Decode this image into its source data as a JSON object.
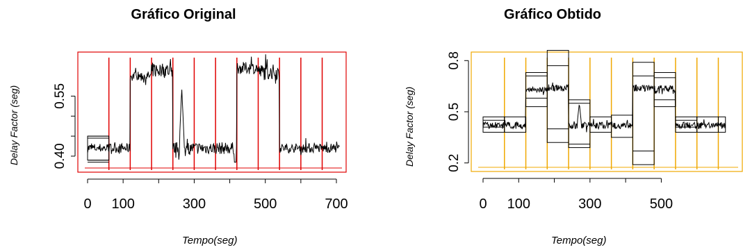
{
  "chart_data": [
    {
      "type": "line",
      "title": "Gráfico Original",
      "xlabel": "Tempo(seg)",
      "ylabel": "Delay Factor (seg)",
      "xlim": [
        0,
        720
      ],
      "ylim": [
        0.36,
        0.66
      ],
      "x_ticks": [
        "0",
        "100",
        "300",
        "500",
        "700"
      ],
      "x_tick_values": [
        0,
        100,
        300,
        500,
        700
      ],
      "y_ticks": [
        "0.40",
        "0.55"
      ],
      "y_tick_values": [
        0.4,
        0.55
      ],
      "frame_color": "#e00000",
      "segments": [
        {
          "x": [
            0,
            60
          ],
          "level": 0.42,
          "noise": 0.012
        },
        {
          "x": [
            60,
            120
          ],
          "level": 0.42,
          "noise": 0.012
        },
        {
          "x": [
            120,
            180
          ],
          "level": 0.6,
          "noise": 0.012
        },
        {
          "x": [
            180,
            240
          ],
          "level": 0.615,
          "noise": 0.02
        },
        {
          "x": [
            240,
            300
          ],
          "level": 0.42,
          "noise": 0.015
        },
        {
          "x": [
            300,
            360
          ],
          "level": 0.42,
          "noise": 0.015
        },
        {
          "x": [
            360,
            420
          ],
          "level": 0.42,
          "noise": 0.015
        },
        {
          "x": [
            420,
            480
          ],
          "level": 0.62,
          "noise": 0.015
        },
        {
          "x": [
            480,
            540
          ],
          "level": 0.61,
          "noise": 0.02
        },
        {
          "x": [
            540,
            600
          ],
          "level": 0.42,
          "noise": 0.012
        },
        {
          "x": [
            600,
            660
          ],
          "level": 0.42,
          "noise": 0.012
        },
        {
          "x": [
            660,
            710
          ],
          "level": 0.42,
          "noise": 0.012
        }
      ],
      "spike": {
        "x": 265,
        "peak": 0.57
      },
      "dip": {
        "x": 415,
        "low": 0.385
      },
      "verticals": [
        60,
        120,
        180,
        240,
        300,
        360,
        420,
        480,
        540,
        600,
        660
      ],
      "boxes": [
        {
          "x": [
            0,
            60
          ],
          "y": [
            0.39,
            0.45
          ]
        }
      ],
      "box_lines": [
        0.385,
        0.39,
        0.445,
        0.45
      ]
    },
    {
      "type": "line",
      "title": "Gráfico Obtido",
      "xlabel": "Tempo(seg)",
      "ylabel": "Delay Factor (seg)",
      "xlim": [
        0,
        680
      ],
      "ylim": [
        0.15,
        0.85
      ],
      "x_ticks": [
        "0",
        "100",
        "300",
        "500"
      ],
      "x_tick_values": [
        0,
        100,
        300,
        500
      ],
      "y_ticks": [
        "0.2",
        "0.5",
        "0.8"
      ],
      "y_tick_values": [
        0.2,
        0.5,
        0.8
      ],
      "frame_color": "#f0a800",
      "segments": [
        {
          "x": [
            0,
            60
          ],
          "level": 0.42,
          "noise": 0.02
        },
        {
          "x": [
            60,
            120
          ],
          "level": 0.42,
          "noise": 0.02
        },
        {
          "x": [
            120,
            180
          ],
          "level": 0.63,
          "noise": 0.015
        },
        {
          "x": [
            180,
            240
          ],
          "level": 0.64,
          "noise": 0.02
        },
        {
          "x": [
            240,
            300
          ],
          "level": 0.42,
          "noise": 0.02
        },
        {
          "x": [
            300,
            360
          ],
          "level": 0.42,
          "noise": 0.02
        },
        {
          "x": [
            360,
            420
          ],
          "level": 0.42,
          "noise": 0.02
        },
        {
          "x": [
            420,
            480
          ],
          "level": 0.64,
          "noise": 0.02
        },
        {
          "x": [
            480,
            540
          ],
          "level": 0.63,
          "noise": 0.025
        },
        {
          "x": [
            540,
            600
          ],
          "level": 0.42,
          "noise": 0.02
        },
        {
          "x": [
            600,
            660
          ],
          "level": 0.42,
          "noise": 0.02
        },
        {
          "x": [
            660,
            680
          ],
          "level": 0.42,
          "noise": 0.02
        }
      ],
      "spike": {
        "x": 270,
        "peak": 0.55
      },
      "verticals": [
        60,
        120,
        180,
        240,
        300,
        360,
        420,
        480,
        540,
        600,
        660
      ],
      "boxes": [
        {
          "x": [
            0,
            60
          ],
          "y": [
            0.38,
            0.47
          ]
        },
        {
          "x": [
            60,
            120
          ],
          "y": [
            0.38,
            0.47
          ]
        },
        {
          "x": [
            120,
            180
          ],
          "y": [
            0.53,
            0.73
          ]
        },
        {
          "x": [
            180,
            240
          ],
          "y": [
            0.32,
            0.86
          ]
        },
        {
          "x": [
            240,
            300
          ],
          "y": [
            0.29,
            0.57
          ]
        },
        {
          "x": [
            300,
            360
          ],
          "y": [
            0.38,
            0.47
          ]
        },
        {
          "x": [
            360,
            420
          ],
          "y": [
            0.35,
            0.48
          ]
        },
        {
          "x": [
            420,
            480
          ],
          "y": [
            0.19,
            0.79
          ]
        },
        {
          "x": [
            480,
            540
          ],
          "y": [
            0.53,
            0.73
          ]
        },
        {
          "x": [
            540,
            600
          ],
          "y": [
            0.38,
            0.47
          ]
        },
        {
          "x": [
            600,
            660
          ],
          "y": [
            0.38,
            0.47
          ]
        },
        {
          "x": [
            660,
            680
          ],
          "y": [
            0.38,
            0.47
          ]
        }
      ],
      "inner_lines": [
        {
          "x": [
            120,
            180
          ],
          "y": [
            0.58,
            0.71
          ]
        },
        {
          "x": [
            180,
            240
          ],
          "y": [
            0.4,
            0.77
          ]
        },
        {
          "x": [
            240,
            300
          ],
          "y": [
            0.31,
            0.55
          ]
        },
        {
          "x": [
            420,
            480
          ],
          "y": [
            0.27,
            0.71
          ]
        },
        {
          "x": [
            480,
            540
          ],
          "y": [
            0.57,
            0.7
          ]
        },
        {
          "x": [
            0,
            60
          ],
          "y": [
            0.41,
            0.45
          ]
        },
        {
          "x": [
            540,
            600
          ],
          "y": [
            0.41,
            0.45
          ]
        }
      ]
    }
  ]
}
